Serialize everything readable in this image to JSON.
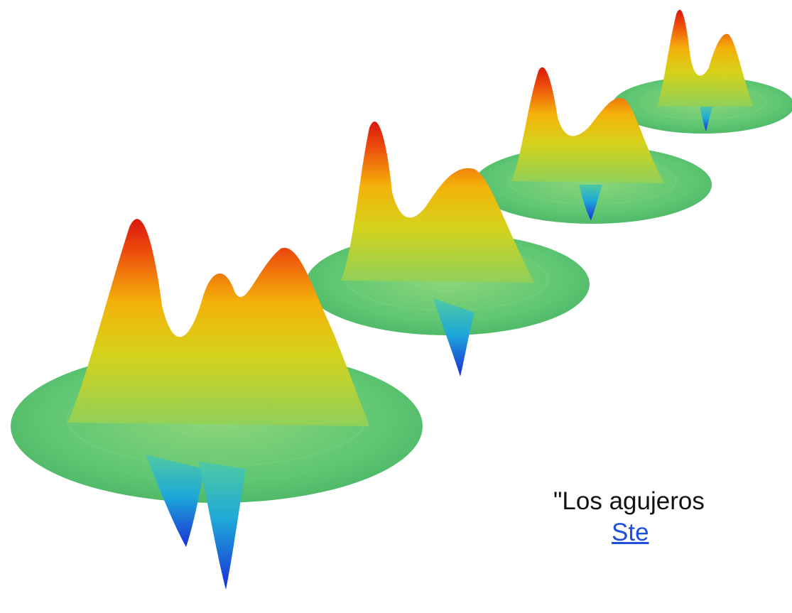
{
  "quote": {
    "text": "\"Los agujeros",
    "author": "Ste"
  },
  "colors": {
    "background": "#ffffff",
    "quote_text": "#111111",
    "link": "#1d4fd8",
    "disk": "#5dc770",
    "peak_top": "#e8220e",
    "peak_mid": "#f4c20d",
    "trough": "#1a3ad8"
  },
  "illustration": {
    "icon": "wave-packet-illustration",
    "surface_count": 4
  }
}
